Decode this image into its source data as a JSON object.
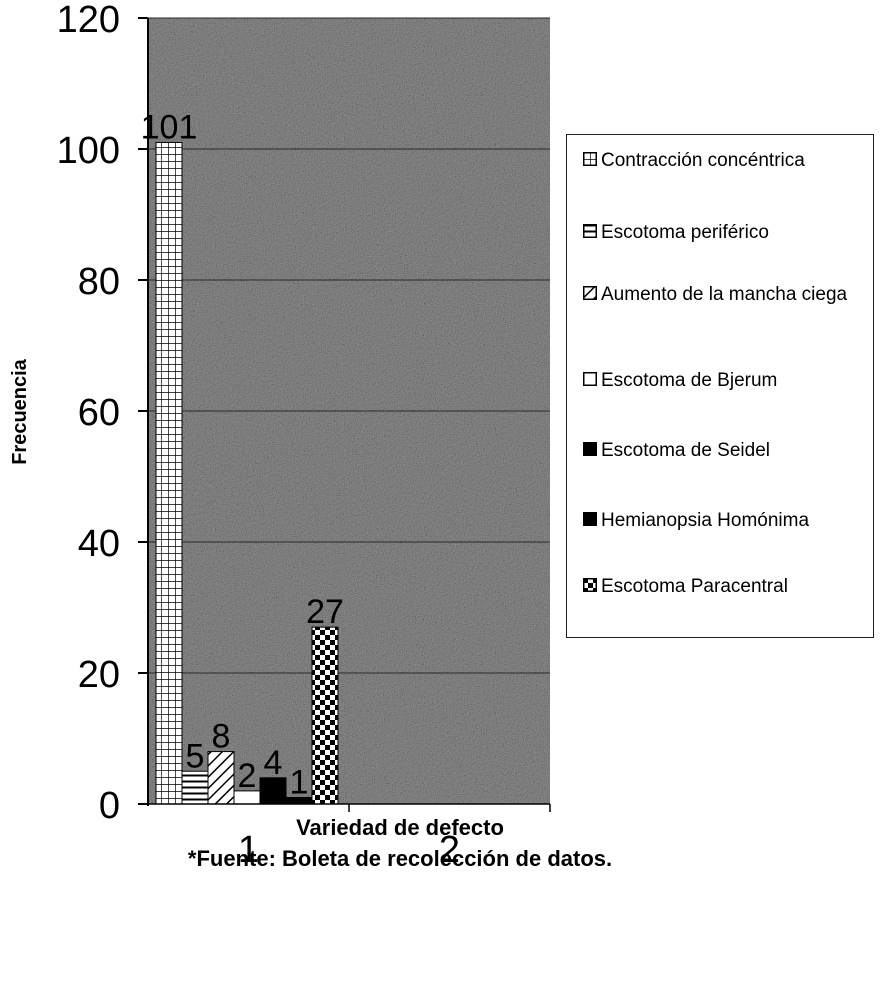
{
  "chart_data": {
    "type": "bar",
    "categories": [
      "1",
      "2"
    ],
    "series": [
      {
        "name": "Contracción concéntrica",
        "values": [
          101,
          null
        ],
        "pattern": "grid"
      },
      {
        "name": "Escotoma periférico",
        "values": [
          5,
          null
        ],
        "pattern": "hlines"
      },
      {
        "name": "Aumento de la mancha ciega",
        "values": [
          8,
          null
        ],
        "pattern": "diagonal"
      },
      {
        "name": "Escotoma de Bjerum",
        "values": [
          2,
          null
        ],
        "pattern": "white"
      },
      {
        "name": "Escotoma de Seidel",
        "values": [
          4,
          null
        ],
        "pattern": "solid-black"
      },
      {
        "name": "Hemianopsia Homónima",
        "values": [
          1,
          null
        ],
        "pattern": "solid-black"
      },
      {
        "name": "Escotoma Paracentral",
        "values": [
          27,
          null
        ],
        "pattern": "checker"
      }
    ],
    "data_labels": [
      "101",
      "5",
      "8",
      "2",
      "4",
      "1",
      "27"
    ],
    "yticks": [
      0,
      20,
      40,
      60,
      80,
      100,
      120
    ],
    "ylim": [
      0,
      120
    ],
    "xlabel": "Variedad  de defecto",
    "ylabel": "Frecuencia",
    "source_note": "*Fuente: Boleta de recolección de datos.",
    "legend_position": "right",
    "grid": true,
    "plot_background": "#8c8c8c",
    "bar_ink": "#000000"
  }
}
